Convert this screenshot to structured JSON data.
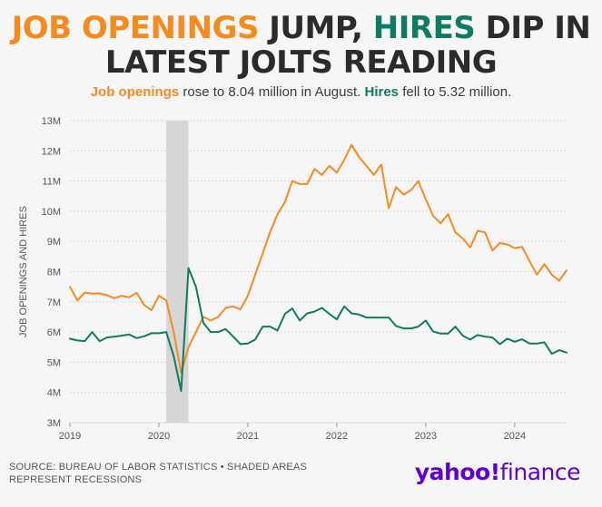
{
  "title": {
    "part1": "JOB OPENINGS",
    "part2": " JUMP, ",
    "part3": "HIRES",
    "part4": " DIP IN",
    "line2": "LATEST JOLTS READING"
  },
  "subtitle": {
    "part1": "Job openings",
    "part2": " rose to 8.04 million in August. ",
    "part3": "Hires",
    "part4": " fell to 5.32 million."
  },
  "footer": {
    "source": "SOURCE: BUREAU OF LABOR STATISTICS • SHADED AREAS REPRESENT RECESSIONS",
    "logo_main": "yahoo!",
    "logo_sub": "finance"
  },
  "colors": {
    "openings": "#f58a1f",
    "hires": "#0f7b63",
    "recession": "#d6d6d6",
    "grid": "#d8d8d8",
    "text": "#555555"
  },
  "chart_data": {
    "type": "line",
    "title": "JOB OPENINGS JUMP, HIRES DIP IN LATEST JOLTS READING",
    "ylabel": "JOB OPENINGS AND HIRES",
    "xlabel": "",
    "x_start": "2019-01",
    "x_end": "2024-08",
    "x_range": [
      2019.0,
      2024.583
    ],
    "ylim": [
      3,
      13
    ],
    "yticks": [
      {
        "value": 13,
        "label": "13M"
      },
      {
        "value": 12,
        "label": "12M"
      },
      {
        "value": 11,
        "label": "11M"
      },
      {
        "value": 10,
        "label": "10M"
      },
      {
        "value": 9,
        "label": "9M"
      },
      {
        "value": 8,
        "label": "8M"
      },
      {
        "value": 7,
        "label": "7M"
      },
      {
        "value": 6,
        "label": "6M"
      },
      {
        "value": 5,
        "label": "5M"
      },
      {
        "value": 4,
        "label": "4M"
      },
      {
        "value": 3,
        "label": "3M"
      }
    ],
    "xticks": [
      {
        "value": 2019,
        "label": "2019"
      },
      {
        "value": 2020,
        "label": "2020"
      },
      {
        "value": 2021,
        "label": "2021"
      },
      {
        "value": 2022,
        "label": "2022"
      },
      {
        "value": 2023,
        "label": "2023"
      },
      {
        "value": 2024,
        "label": "2024"
      }
    ],
    "shaded_periods": [
      {
        "start": 2020.083,
        "end": 2020.333,
        "label": "Recession"
      }
    ],
    "series": [
      {
        "name": "Job openings",
        "color": "#f58a1f",
        "values": [
          7.5,
          7.05,
          7.3,
          7.27,
          7.28,
          7.22,
          7.12,
          7.2,
          7.15,
          7.3,
          6.9,
          6.72,
          7.2,
          7.05,
          6.0,
          4.65,
          5.5,
          6.0,
          6.5,
          6.38,
          6.5,
          6.8,
          6.85,
          6.75,
          7.2,
          7.9,
          8.6,
          9.3,
          9.9,
          10.3,
          11.0,
          10.9,
          10.9,
          11.4,
          11.2,
          11.5,
          11.28,
          11.7,
          12.2,
          11.8,
          11.5,
          11.2,
          11.55,
          10.1,
          10.8,
          10.55,
          10.7,
          11.0,
          10.4,
          9.85,
          9.6,
          9.9,
          9.3,
          9.1,
          8.8,
          9.35,
          9.3,
          8.7,
          8.95,
          8.9,
          8.78,
          8.82,
          8.35,
          7.9,
          8.25,
          7.9,
          7.7,
          8.04
        ]
      },
      {
        "name": "Hires",
        "color": "#0f7b63",
        "values": [
          5.78,
          5.72,
          5.7,
          6.0,
          5.7,
          5.82,
          5.85,
          5.88,
          5.92,
          5.8,
          5.86,
          5.96,
          5.96,
          6.0,
          5.2,
          4.05,
          8.12,
          7.5,
          6.3,
          6.0,
          6.0,
          6.1,
          5.86,
          5.6,
          5.62,
          5.75,
          6.18,
          6.18,
          6.05,
          6.6,
          6.78,
          6.38,
          6.62,
          6.68,
          6.8,
          6.6,
          6.42,
          6.85,
          6.62,
          6.58,
          6.48,
          6.48,
          6.48,
          6.48,
          6.2,
          6.12,
          6.12,
          6.18,
          6.38,
          6.02,
          5.95,
          5.95,
          6.18,
          5.88,
          5.75,
          5.9,
          5.85,
          5.82,
          5.6,
          5.78,
          5.68,
          5.76,
          5.62,
          5.62,
          5.66,
          5.28,
          5.4,
          5.32
        ]
      }
    ]
  }
}
